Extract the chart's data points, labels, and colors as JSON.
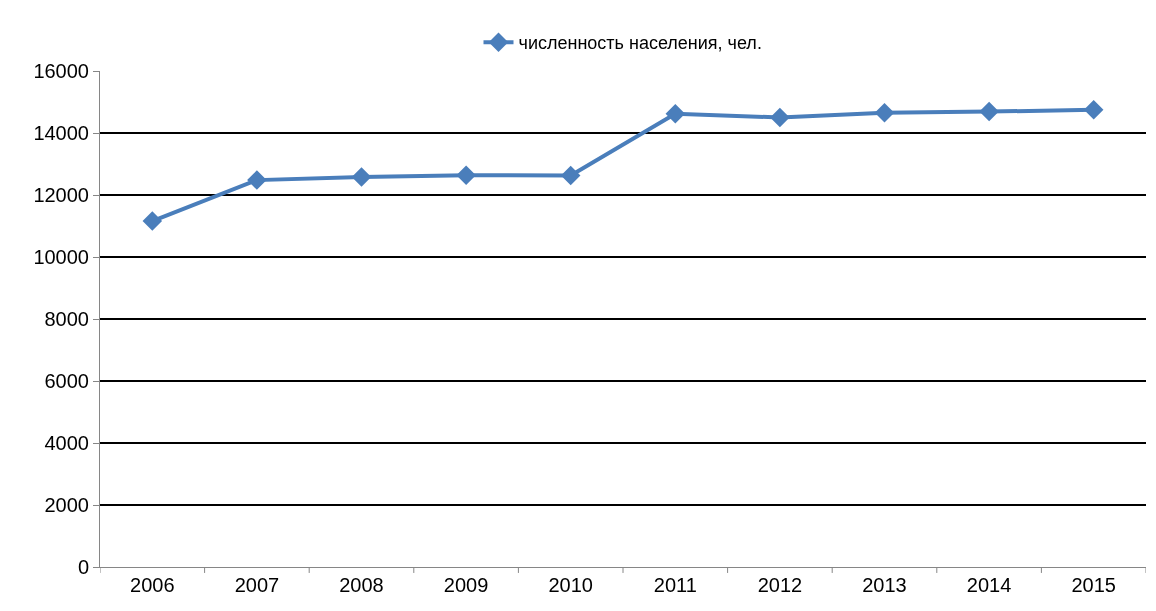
{
  "chart_data": {
    "type": "line",
    "categories": [
      "2006",
      "2007",
      "2008",
      "2009",
      "2010",
      "2011",
      "2012",
      "2013",
      "2014",
      "2015"
    ],
    "series": [
      {
        "name": "численность населения, чел.",
        "color": "#4a7ebb",
        "values": [
          11160,
          12480,
          12580,
          12640,
          12630,
          14620,
          14500,
          14650,
          14690,
          14750
        ]
      }
    ],
    "ylim": [
      0,
      16000
    ],
    "yticks": [
      0,
      2000,
      4000,
      6000,
      8000,
      10000,
      12000,
      14000,
      16000
    ],
    "grid": "y",
    "legend": "top",
    "marker": "diamond",
    "line_style": "solid"
  }
}
